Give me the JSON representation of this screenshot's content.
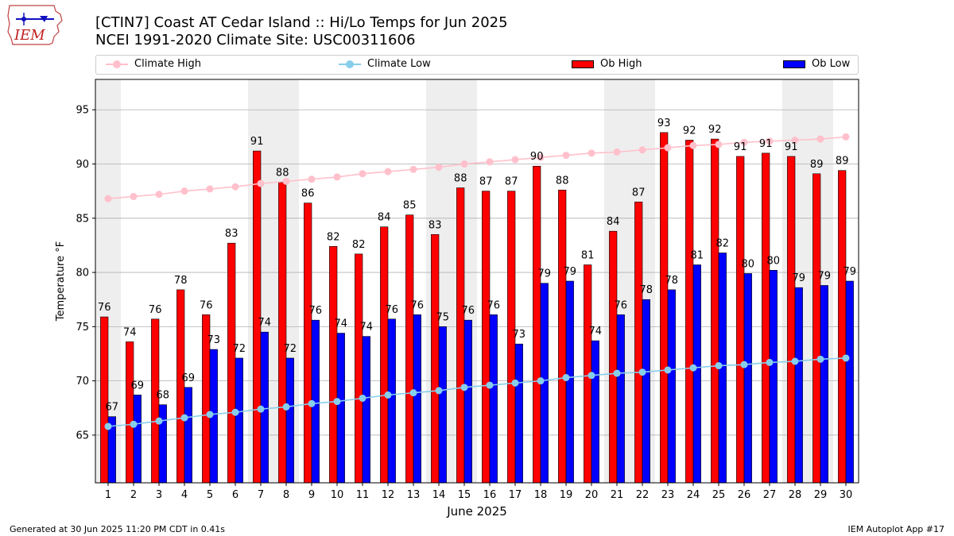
{
  "header": {
    "logo_text": "IEM",
    "title_line1": "[CTIN7] Coast  AT Cedar Island :: Hi/Lo Temps for Jun 2025",
    "title_line2": "NCEI 1991-2020 Climate Site: USC00311606"
  },
  "legend": {
    "climate_high": "Climate High",
    "climate_low": "Climate Low",
    "ob_high": "Ob High",
    "ob_low": "Ob Low"
  },
  "colors": {
    "ob_high": "#ff0000",
    "ob_low": "#0000ff",
    "climate_high": "#ffc0cb",
    "climate_low": "#87ceeb",
    "weekend_shade": "#eeeeee",
    "grid": "#b0b0b0"
  },
  "chart_data": {
    "type": "bar",
    "xlabel": "June 2025",
    "ylabel": "Temperature °F",
    "ylim": [
      60.6,
      97.8
    ],
    "yticks": [
      65,
      70,
      75,
      80,
      85,
      90,
      95
    ],
    "grid": "horizontal",
    "legend_position": "top",
    "categories": [
      "1",
      "2",
      "3",
      "4",
      "5",
      "6",
      "7",
      "8",
      "9",
      "10",
      "11",
      "12",
      "13",
      "14",
      "15",
      "16",
      "17",
      "18",
      "19",
      "20",
      "21",
      "22",
      "23",
      "24",
      "25",
      "26",
      "27",
      "28",
      "29",
      "30"
    ],
    "shaded_days": [
      1,
      7,
      8,
      14,
      15,
      21,
      22,
      28,
      29
    ],
    "series": [
      {
        "name": "Ob High",
        "kind": "bar",
        "values": [
          75.9,
          73.6,
          75.7,
          78.4,
          76.1,
          82.7,
          91.2,
          88.3,
          86.4,
          82.4,
          81.7,
          84.2,
          85.3,
          83.5,
          87.8,
          87.5,
          87.5,
          89.8,
          87.6,
          80.7,
          83.8,
          86.5,
          92.9,
          92.2,
          92.3,
          90.7,
          91.0,
          90.7,
          89.1,
          89.4
        ],
        "labels": [
          "76",
          "74",
          "76",
          "78",
          "76",
          "83",
          "91",
          "88",
          "86",
          "82",
          "82",
          "84",
          "85",
          "83",
          "88",
          "87",
          "87",
          "90",
          "88",
          "81",
          "84",
          "87",
          "93",
          "92",
          "92",
          "91",
          "91",
          "91",
          "89",
          "89"
        ]
      },
      {
        "name": "Ob Low",
        "kind": "bar",
        "values": [
          66.7,
          68.7,
          67.8,
          69.4,
          72.9,
          72.1,
          74.5,
          72.1,
          75.6,
          74.4,
          74.1,
          75.7,
          76.1,
          75.0,
          75.6,
          76.1,
          73.4,
          79.0,
          79.2,
          73.7,
          76.1,
          77.5,
          78.4,
          80.7,
          81.8,
          79.9,
          80.2,
          78.6,
          78.8,
          79.2
        ],
        "labels": [
          "67",
          "69",
          "68",
          "69",
          "73",
          "72",
          "74",
          "72",
          "76",
          "74",
          "74",
          "76",
          "76",
          "75",
          "76",
          "76",
          "73",
          "79",
          "79",
          "74",
          "76",
          "78",
          "78",
          "81",
          "82",
          "80",
          "80",
          "79",
          "79",
          "79"
        ]
      },
      {
        "name": "Climate High",
        "kind": "line",
        "values": [
          86.8,
          87.0,
          87.2,
          87.5,
          87.7,
          87.9,
          88.2,
          88.4,
          88.6,
          88.8,
          89.1,
          89.3,
          89.5,
          89.7,
          90.0,
          90.2,
          90.4,
          90.6,
          90.8,
          91.0,
          91.1,
          91.3,
          91.5,
          91.7,
          91.8,
          92.0,
          92.1,
          92.2,
          92.3,
          92.5
        ]
      },
      {
        "name": "Climate Low",
        "kind": "line",
        "values": [
          65.8,
          66.0,
          66.3,
          66.6,
          66.9,
          67.1,
          67.4,
          67.6,
          67.9,
          68.1,
          68.4,
          68.7,
          68.9,
          69.1,
          69.4,
          69.6,
          69.8,
          70.0,
          70.3,
          70.5,
          70.7,
          70.8,
          71.0,
          71.2,
          71.4,
          71.5,
          71.7,
          71.8,
          72.0,
          72.1
        ]
      }
    ]
  },
  "footer": {
    "left": "Generated at 30 Jun 2025 11:20 PM CDT in 0.41s",
    "right": "IEM Autoplot App #17"
  }
}
